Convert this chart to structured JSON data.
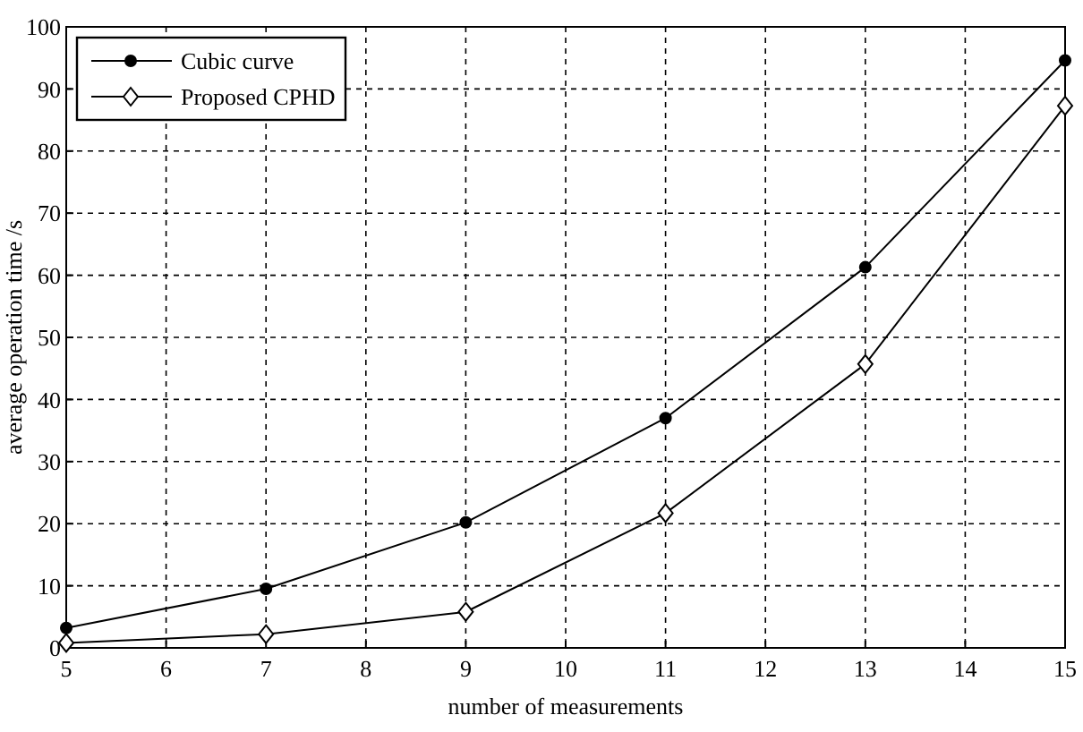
{
  "chart_data": {
    "type": "line",
    "xlabel": "number of measurements",
    "ylabel": "average operation time /s",
    "x": [
      5,
      7,
      9,
      11,
      13,
      15
    ],
    "series": [
      {
        "name": "Cubic curve",
        "color": "#000000",
        "marker": "circle",
        "values": [
          3.2,
          9.5,
          20.2,
          37.0,
          61.3,
          94.6
        ]
      },
      {
        "name": "Proposed CPHD",
        "color": "#000000",
        "marker": "diamond",
        "values": [
          0.8,
          2.2,
          5.8,
          21.7,
          45.7,
          87.3
        ]
      }
    ],
    "xlim": [
      5,
      15
    ],
    "xticks": [
      5,
      6,
      7,
      8,
      9,
      10,
      11,
      12,
      13,
      14,
      15
    ],
    "ylim": [
      0,
      100
    ],
    "yticks": [
      0,
      10,
      20,
      30,
      40,
      50,
      60,
      70,
      80,
      90,
      100
    ],
    "grid": true,
    "legend": "top left",
    "line_style": "solid"
  }
}
